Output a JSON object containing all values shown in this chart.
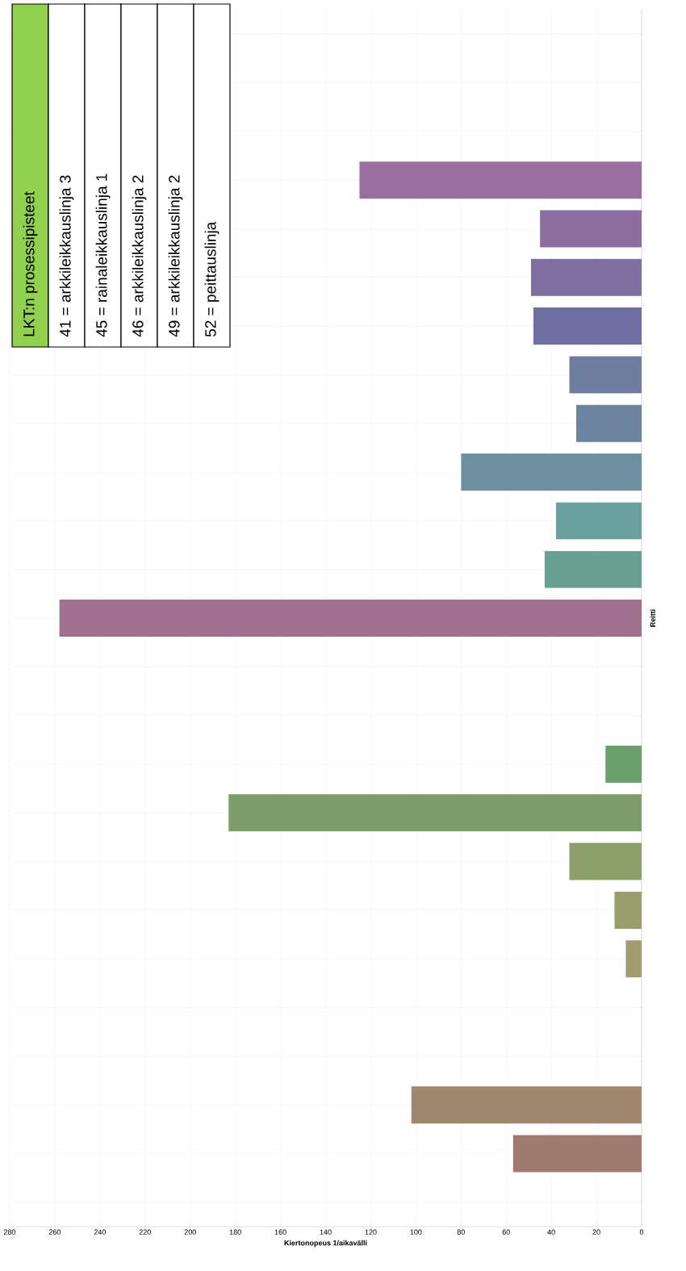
{
  "chart_data": {
    "type": "bar",
    "orientation": "horizontal",
    "xlabel": "Kiertonopeus 1/aikavälli",
    "ylabel": "Reitti",
    "categories": [
      null,
      null,
      null,
      null,
      null,
      null,
      null,
      null,
      null,
      null,
      null,
      null,
      null,
      null,
      null,
      null,
      null,
      null,
      null,
      null,
      null,
      null,
      null,
      null,
      null
    ],
    "values": [
      null,
      null,
      null,
      125,
      45,
      49,
      48,
      32,
      29,
      80,
      38,
      43,
      258,
      null,
      null,
      16,
      183,
      32,
      12,
      7,
      null,
      null,
      102,
      57,
      null
    ],
    "colors": [
      null,
      null,
      null,
      "#9a6fa0",
      "#8c6fa0",
      "#7f6ea0",
      "#6e6fa0",
      "#6f7ea0",
      "#6e839e",
      "#6e8f9e",
      "#6aa09e",
      "#6aa092",
      "#a0718f",
      null,
      null,
      "#6a9e6a",
      "#7c9c6a",
      "#8c9e6a",
      "#9a9e6e",
      "#a09e70",
      null,
      null,
      "#a08870",
      "#a07a70",
      null
    ],
    "xlim": [
      280,
      0
    ],
    "xticks": [
      0,
      20,
      40,
      60,
      80,
      100,
      120,
      140,
      160,
      180,
      200,
      220,
      240,
      260,
      280
    ],
    "grid": true,
    "annotations": [
      "LKT:n prosessipisteet",
      "41 = arkkileikkauslinja 3",
      "45 = rainaleikkauslinja 1",
      "46 = arkkileikkauslinja 2",
      "49 = arkkileikkauslinja 2",
      "52 = peittauslinja"
    ]
  }
}
